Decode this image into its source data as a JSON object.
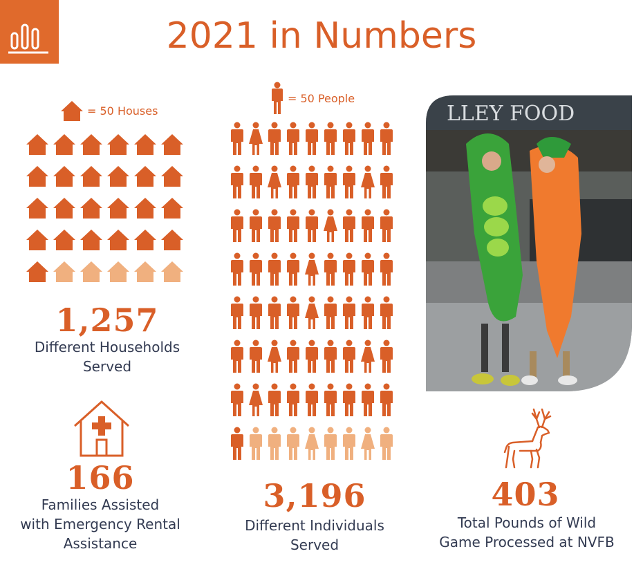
{
  "title": "2021 in Numbers",
  "colors": {
    "primary": "#d95f28",
    "light": "#f0b07f",
    "text": "#333b52"
  },
  "icons": {
    "logo": "bar-chart-icon",
    "house": "house-icon",
    "person": "person-icon",
    "rental": "house-medical-cross-icon",
    "game": "deer-icon"
  },
  "houses": {
    "legend": "= 50 Houses",
    "filled": 25,
    "total": 30,
    "value": "1,257",
    "label_line1": "Different Households",
    "label_line2": "Served"
  },
  "people": {
    "legend": "= 50 People",
    "filled": 64,
    "total": 72,
    "value": "3,196",
    "label_line1": "Different Individuals",
    "label_line2": "Served"
  },
  "rental": {
    "value": "166",
    "label_line1": "Families Assisted",
    "label_line2": "with Emergency Rental",
    "label_line3": "Assistance"
  },
  "game": {
    "value": "403",
    "label_line1": "Total Pounds of Wild",
    "label_line2": "Game Processed at NVFB"
  },
  "photo": {
    "sign_text": "LLEY FOOD"
  }
}
